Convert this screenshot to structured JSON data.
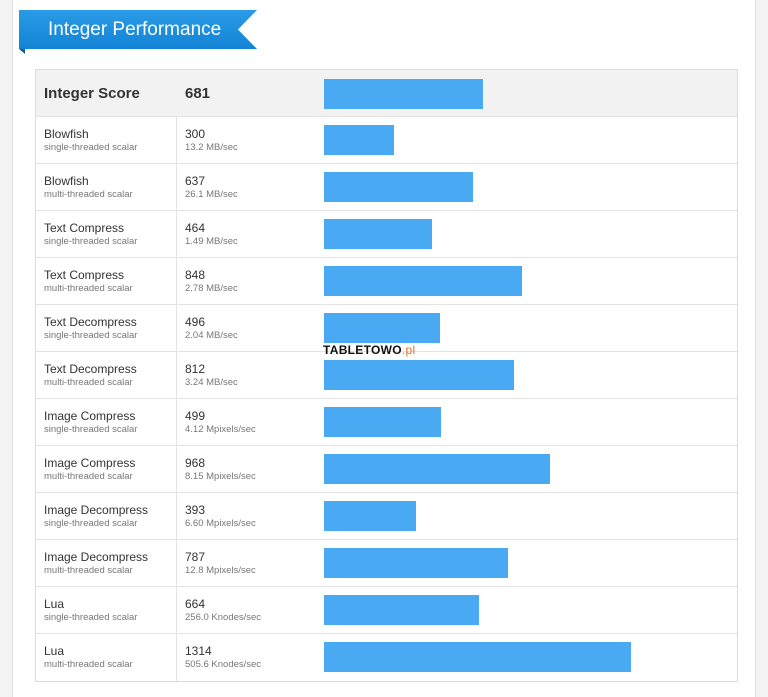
{
  "section_title": "Integer Performance",
  "header": {
    "label": "Integer Score",
    "score": "681",
    "value": 681
  },
  "max_value": 1314,
  "rows": [
    {
      "name": "Blowfish",
      "mode": "single-threaded scalar",
      "score": "300",
      "rate": "13.2 MB/sec",
      "value": 300
    },
    {
      "name": "Blowfish",
      "mode": "multi-threaded scalar",
      "score": "637",
      "rate": "26.1 MB/sec",
      "value": 637
    },
    {
      "name": "Text Compress",
      "mode": "single-threaded scalar",
      "score": "464",
      "rate": "1.49 MB/sec",
      "value": 464
    },
    {
      "name": "Text Compress",
      "mode": "multi-threaded scalar",
      "score": "848",
      "rate": "2.78 MB/sec",
      "value": 848
    },
    {
      "name": "Text Decompress",
      "mode": "single-threaded scalar",
      "score": "496",
      "rate": "2.04 MB/sec",
      "value": 496
    },
    {
      "name": "Text Decompress",
      "mode": "multi-threaded scalar",
      "score": "812",
      "rate": "3.24 MB/sec",
      "value": 812
    },
    {
      "name": "Image Compress",
      "mode": "single-threaded scalar",
      "score": "499",
      "rate": "4.12 Mpixels/sec",
      "value": 499
    },
    {
      "name": "Image Compress",
      "mode": "multi-threaded scalar",
      "score": "968",
      "rate": "8.15 Mpixels/sec",
      "value": 968
    },
    {
      "name": "Image Decompress",
      "mode": "single-threaded scalar",
      "score": "393",
      "rate": "6.60 Mpixels/sec",
      "value": 393
    },
    {
      "name": "Image Decompress",
      "mode": "multi-threaded scalar",
      "score": "787",
      "rate": "12.8 Mpixels/sec",
      "value": 787
    },
    {
      "name": "Lua",
      "mode": "single-threaded scalar",
      "score": "664",
      "rate": "256.0 Knodes/sec",
      "value": 664
    },
    {
      "name": "Lua",
      "mode": "multi-threaded scalar",
      "score": "1314",
      "rate": "505.6 Knodes/sec",
      "value": 1314
    }
  ],
  "watermark": {
    "brand": "TABLETOWO",
    "suffix": ".pl"
  },
  "colors": {
    "bar": "#49a9f3",
    "ribbon": "#1a8ddb"
  }
}
